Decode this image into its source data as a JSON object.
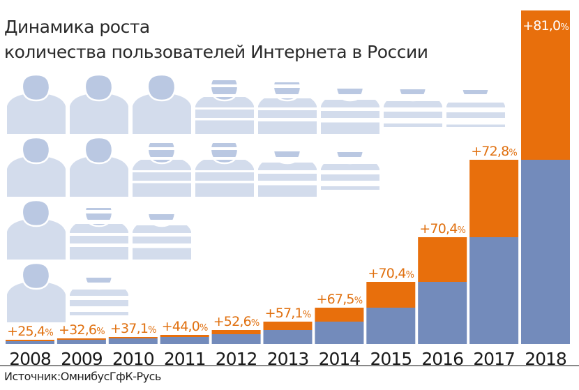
{
  "chart_data": {
    "type": "bar",
    "title": "Динамика роста количества пользователей Интернета в России",
    "title_lines": [
      "Динамика роста",
      "количества пользователей Интернета в России"
    ],
    "categories": [
      "2008",
      "2009",
      "2010",
      "2011",
      "2012",
      "2013",
      "2014",
      "2015",
      "2016",
      "2017",
      "2018"
    ],
    "labels": [
      "+25,4%",
      "+32,6%",
      "+37,1%",
      "+44,0%",
      "+52,6%",
      "+57,1%",
      "+67,5%",
      "+70,4%",
      "+70,4%",
      "+72,8%",
      "+81,0%"
    ],
    "percent_values": [
      25.4,
      32.6,
      37.1,
      44.0,
      52.6,
      57.1,
      67.5,
      70.4,
      70.4,
      72.8,
      81.0
    ],
    "series": [
      {
        "name": "previous level",
        "color": "#738bbb",
        "values": [
          4,
          6,
          8,
          10,
          14,
          20,
          32,
          52,
          89,
          153,
          264
        ]
      },
      {
        "name": "growth",
        "color": "#e86f0c",
        "values": [
          2,
          2,
          2,
          3,
          6,
          12,
          20,
          37,
          64,
          111,
          214
        ]
      }
    ],
    "value_units": "relative bar height (no axis shown)",
    "xlabel": "",
    "ylabel": "",
    "grid": false,
    "legend": "none",
    "source": "Источник:ОмнибусГфК-Русь"
  },
  "colors": {
    "icon_head": "#bac8e2",
    "icon_body": "#d3dcec",
    "label": "#e0700f",
    "axis_text": "#1a1a1a"
  },
  "icons": {
    "name": "person-icon",
    "rows": [
      [
        0,
        0,
        0,
        1,
        2,
        3,
        4,
        5
      ],
      [
        0,
        0,
        1,
        1,
        3,
        4
      ],
      [
        0,
        2,
        3
      ],
      [
        0,
        4
      ]
    ]
  }
}
